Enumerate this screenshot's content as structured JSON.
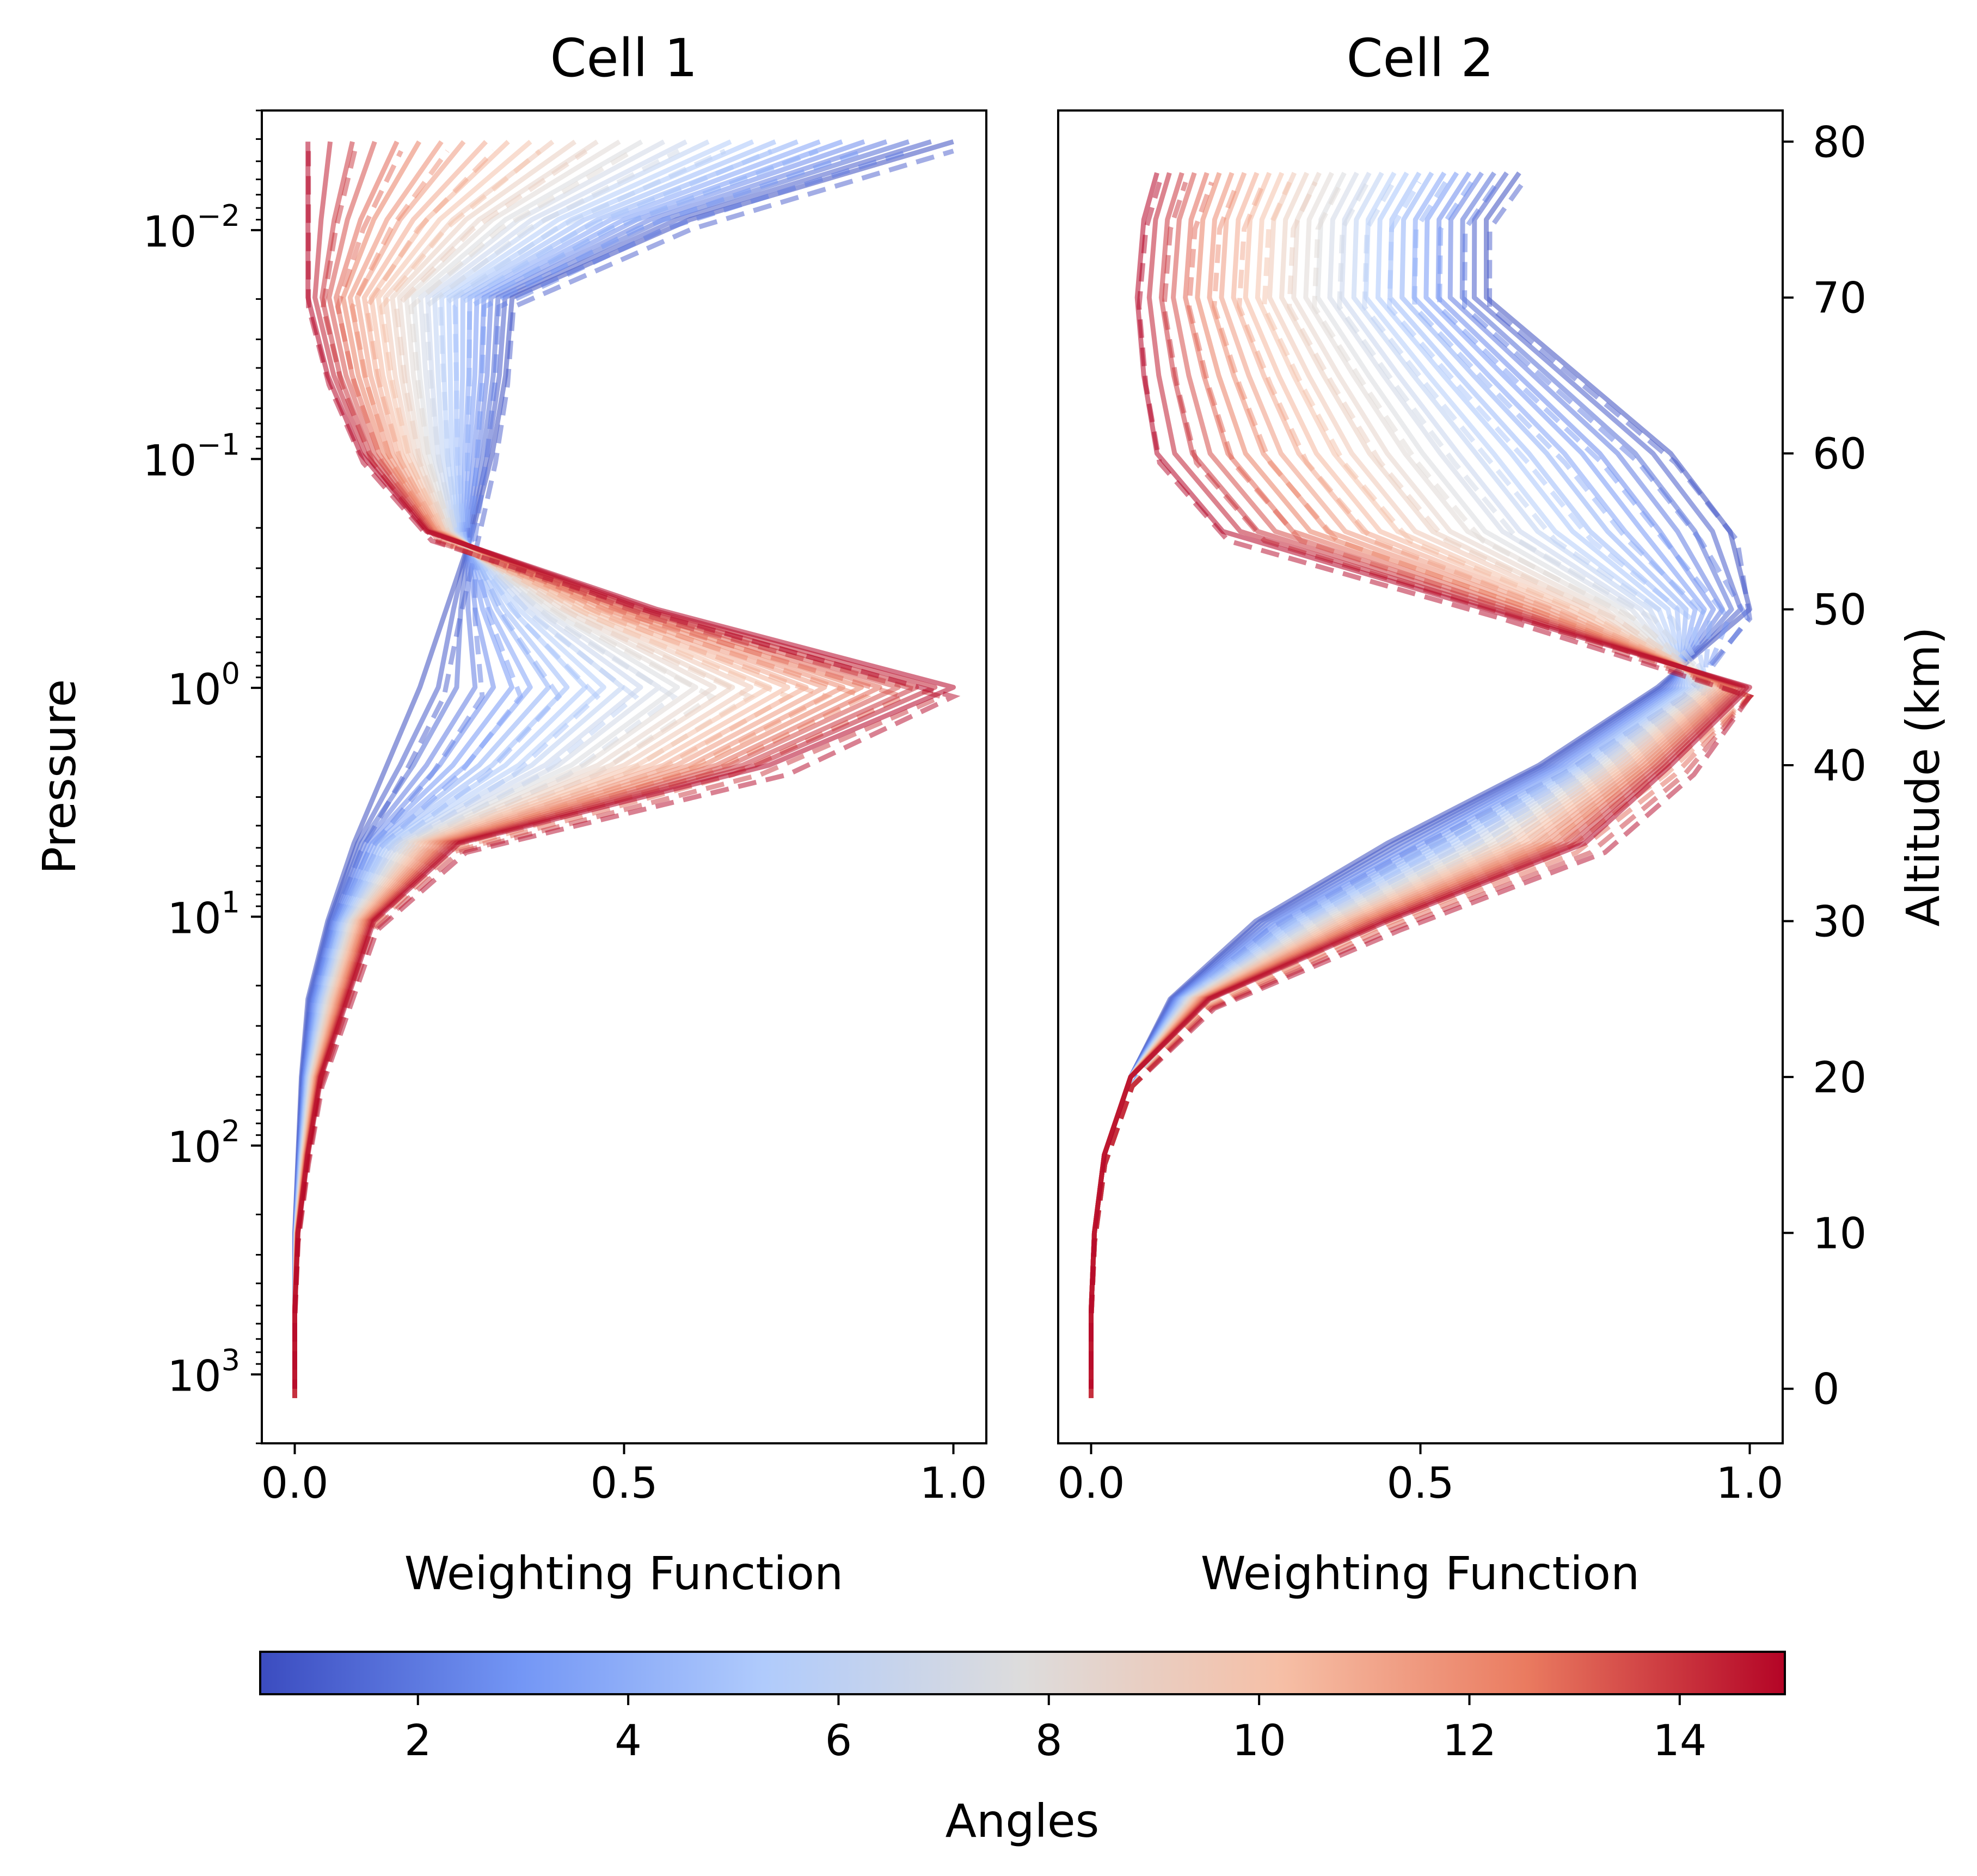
{
  "chart_data": [
    {
      "type": "line",
      "title": "Cell 1",
      "xlabel": "Weighting Function",
      "ylabel": "Pressure",
      "xlim": [
        -0.05,
        1.05
      ],
      "ylim_pressure": [
        2000,
        0.003
      ],
      "yscale": "log",
      "xticks": [
        "0.0",
        "0.5",
        "1.0"
      ],
      "yticks": [
        {
          "base": "10",
          "exp": "−2",
          "value": 0.01
        },
        {
          "base": "10",
          "exp": "−1",
          "value": 0.1
        },
        {
          "base": "10",
          "exp": "0",
          "value": 1
        },
        {
          "base": "10",
          "exp": "1",
          "value": 10
        },
        {
          "base": "10",
          "exp": "2",
          "value": 100
        },
        {
          "base": "10",
          "exp": "3",
          "value": 1000
        }
      ],
      "family": "one line per angle, coloured by angle; dashed variants overlay solid lines",
      "altitude_km": [
        0,
        5,
        10,
        15,
        20,
        25,
        30,
        35,
        40,
        45,
        50,
        55,
        60,
        65,
        70,
        75,
        80
      ],
      "series_low_angle_0.5": [
        0.0,
        0.0,
        0.0,
        0.005,
        0.01,
        0.02,
        0.05,
        0.09,
        0.14,
        0.19,
        0.23,
        0.27,
        0.3,
        0.32,
        0.33,
        0.6,
        1.0
      ],
      "series_high_angle_15": [
        0.0,
        0.0,
        0.005,
        0.02,
        0.04,
        0.08,
        0.12,
        0.25,
        0.72,
        1.0,
        0.55,
        0.2,
        0.1,
        0.05,
        0.02,
        0.02,
        0.02
      ],
      "grid": false
    },
    {
      "type": "line",
      "title": "Cell 2",
      "xlabel": "Weighting Function",
      "ylabel_right": "Altitude (km)",
      "xlim": [
        -0.05,
        1.05
      ],
      "ylim": [
        -3.5,
        82
      ],
      "xticks": [
        "0.0",
        "0.5",
        "1.0"
      ],
      "yticks": [
        "0",
        "10",
        "20",
        "30",
        "40",
        "50",
        "60",
        "70",
        "80"
      ],
      "altitude_km": [
        0,
        5,
        10,
        15,
        20,
        25,
        30,
        35,
        40,
        45,
        50,
        55,
        60,
        65,
        70,
        75,
        78
      ],
      "series_low_angle_0.5": [
        0.0,
        0.0,
        0.005,
        0.02,
        0.06,
        0.12,
        0.25,
        0.45,
        0.68,
        0.86,
        1.0,
        0.97,
        0.88,
        0.74,
        0.6,
        0.6,
        0.65
      ],
      "series_high_angle_15": [
        0.0,
        0.0,
        0.005,
        0.02,
        0.06,
        0.18,
        0.45,
        0.75,
        0.88,
        1.0,
        0.6,
        0.2,
        0.1,
        0.08,
        0.07,
        0.08,
        0.1
      ],
      "grid": false
    }
  ],
  "colorbar": {
    "label": "Angles",
    "min": 0.5,
    "max": 15,
    "ticks": [
      "2",
      "4",
      "6",
      "8",
      "10",
      "12",
      "14"
    ],
    "colormap": [
      "#3b4cc0",
      "#7396f5",
      "#b0cbfc",
      "#dddcdc",
      "#f6bfa6",
      "#ea7b60",
      "#b40426"
    ]
  }
}
